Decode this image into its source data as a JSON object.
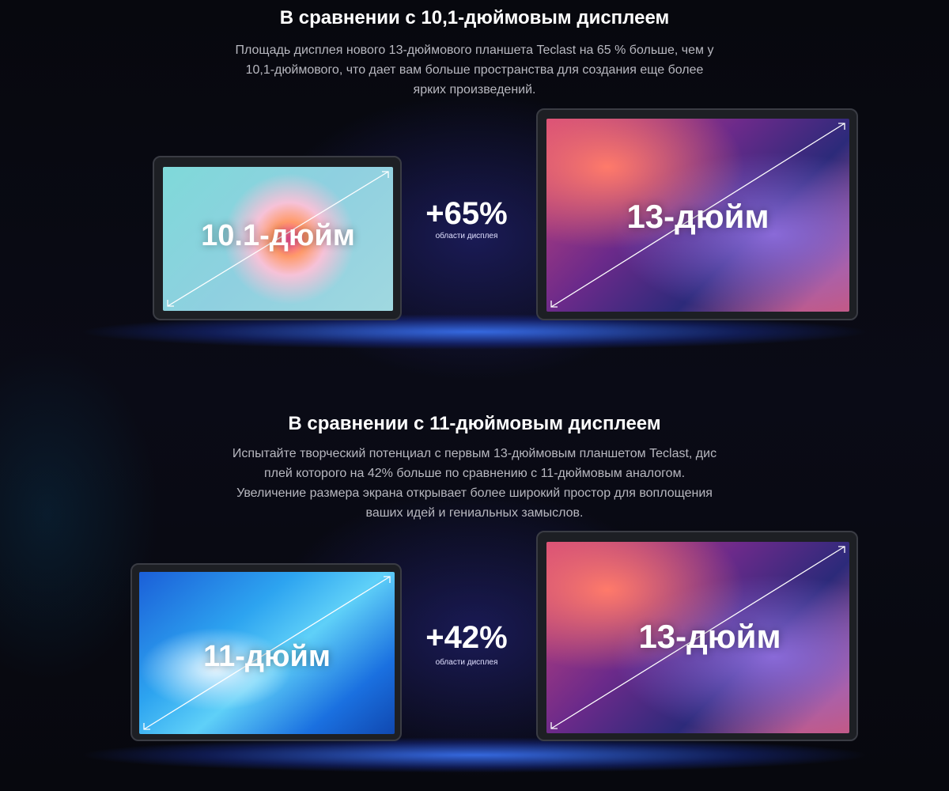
{
  "section1": {
    "title": "В сравнении с 10,1-дюймовым дисплеем",
    "paragraph_lines": [
      "Площадь дисплея нового 13-дюймового планшета Teclast на 65 % больше, чем у",
      "10,1-дюймового, что дает вам больше пространства для создания еще более",
      "ярких произведений."
    ],
    "small_tablet_label": "10.1-дюйм",
    "large_tablet_label": "13-дюйм",
    "increase": "+65%",
    "increase_caption": "области дисплея"
  },
  "section2": {
    "title": "В сравнении с 11-дюймовым дисплеем",
    "paragraph_lines": [
      "Испытайте творческий потенциал с первым 13-дюймовым планшетом Teclast, дис",
      "плей которого на 42% больше по сравнению с 11-дюймовым аналогом.",
      "Увеличение размера экрана открывает более широкий простор для воплощения",
      "ваших идей и гениальных замыслов."
    ],
    "small_tablet_label": "11-дюйм",
    "large_tablet_label": "13-дюйм",
    "increase": "+42%",
    "increase_caption": "области дисплея"
  },
  "colors": {
    "background": "#05060c",
    "glow": "#3c78ff",
    "text": "#ffffff",
    "body_text": "#b8b8c0"
  }
}
